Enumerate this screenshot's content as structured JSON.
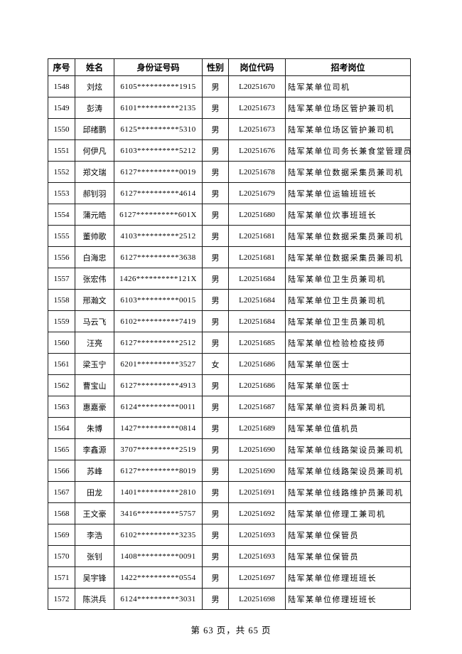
{
  "document": {
    "footer_text": "第 63 页，共 65 页"
  },
  "table": {
    "headers": [
      "序号",
      "姓名",
      "身份证号码",
      "性别",
      "岗位代码",
      "招考岗位"
    ],
    "column_keys": [
      "index",
      "name",
      "id-number",
      "gender",
      "job-code",
      "position"
    ],
    "rows": [
      [
        "1548",
        "刘炫",
        "6105**********1915",
        "男",
        "L20251670",
        "陆军某单位司机"
      ],
      [
        "1549",
        "彭涛",
        "6101**********2135",
        "男",
        "L20251673",
        "陆军某单位场区管护兼司机"
      ],
      [
        "1550",
        "邱绪鹏",
        "6125**********5310",
        "男",
        "L20251673",
        "陆军某单位场区管护兼司机"
      ],
      [
        "1551",
        "何伊凡",
        "6103**********5212",
        "男",
        "L20251676",
        "陆军某单位司务长兼食堂管理员"
      ],
      [
        "1552",
        "郑文瑞",
        "6127**********0019",
        "男",
        "L20251678",
        "陆军某单位数据采集员兼司机"
      ],
      [
        "1553",
        "郝钊羽",
        "6127**********4614",
        "男",
        "L20251679",
        "陆军某单位运输班班长"
      ],
      [
        "1554",
        "蒲元皓",
        "6127**********601X",
        "男",
        "L20251680",
        "陆军某单位炊事班班长"
      ],
      [
        "1555",
        "董帅歌",
        "4103**********2512",
        "男",
        "L20251681",
        "陆军某单位数据采集员兼司机"
      ],
      [
        "1556",
        "白海忠",
        "6127**********3638",
        "男",
        "L20251681",
        "陆军某单位数据采集员兼司机"
      ],
      [
        "1557",
        "张宏伟",
        "1426**********121X",
        "男",
        "L20251684",
        "陆军某单位卫生员兼司机"
      ],
      [
        "1558",
        "邢瀚文",
        "6103**********0015",
        "男",
        "L20251684",
        "陆军某单位卫生员兼司机"
      ],
      [
        "1559",
        "马云飞",
        "6102**********7419",
        "男",
        "L20251684",
        "陆军某单位卫生员兼司机"
      ],
      [
        "1560",
        "汪亮",
        "6127**********2512",
        "男",
        "L20251685",
        "陆军某单位检验检疫技师"
      ],
      [
        "1561",
        "梁玉宁",
        "6201**********3527",
        "女",
        "L20251686",
        "陆军某单位医士"
      ],
      [
        "1562",
        "曹宝山",
        "6127**********4913",
        "男",
        "L20251686",
        "陆军某单位医士"
      ],
      [
        "1563",
        "惠嘉豪",
        "6124**********0011",
        "男",
        "L20251687",
        "陆军某单位资料员兼司机"
      ],
      [
        "1564",
        "朱博",
        "1427**********0814",
        "男",
        "L20251689",
        "陆军某单位值机员"
      ],
      [
        "1565",
        "李鑫源",
        "3707**********2519",
        "男",
        "L20251690",
        "陆军某单位线路架设员兼司机"
      ],
      [
        "1566",
        "苏峰",
        "6127**********8019",
        "男",
        "L20251690",
        "陆军某单位线路架设员兼司机"
      ],
      [
        "1567",
        "田龙",
        "1401**********2810",
        "男",
        "L20251691",
        "陆军某单位线路维护员兼司机"
      ],
      [
        "1568",
        "王文豪",
        "3416**********5757",
        "男",
        "L20251692",
        "陆军某单位修理工兼司机"
      ],
      [
        "1569",
        "李浩",
        "6102**********3235",
        "男",
        "L20251693",
        "陆军某单位保管员"
      ],
      [
        "1570",
        "张钊",
        "1408**********0091",
        "男",
        "L20251693",
        "陆军某单位保管员"
      ],
      [
        "1571",
        "吴宇锋",
        "1422**********0554",
        "男",
        "L20251697",
        "陆军某单位修理班班长"
      ],
      [
        "1572",
        "陈洪兵",
        "6124**********3031",
        "男",
        "L20251698",
        "陆军某单位修理班班长"
      ]
    ]
  }
}
